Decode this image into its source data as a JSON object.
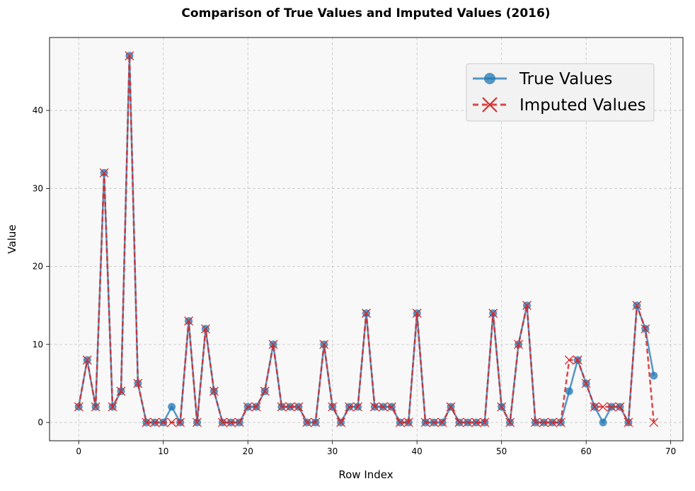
{
  "chart_data": {
    "type": "line",
    "title": "Comparison of True Values and Imputed Values (2016)",
    "xlabel": "Row Index",
    "ylabel": "Value",
    "xlim": [
      -3.45,
      71.45
    ],
    "ylim": [
      -2.35,
      49.35
    ],
    "xticks": [
      0,
      10,
      20,
      30,
      40,
      50,
      60,
      70
    ],
    "yticks": [
      0,
      10,
      20,
      30,
      40
    ],
    "grid": true,
    "legend_position": "top-right",
    "x": [
      0,
      1,
      2,
      3,
      4,
      5,
      6,
      7,
      8,
      9,
      10,
      11,
      12,
      13,
      14,
      15,
      16,
      17,
      18,
      19,
      20,
      21,
      22,
      23,
      24,
      25,
      26,
      27,
      28,
      29,
      30,
      31,
      32,
      33,
      34,
      35,
      36,
      37,
      38,
      39,
      40,
      41,
      42,
      43,
      44,
      45,
      46,
      47,
      48,
      49,
      50,
      51,
      52,
      53,
      54,
      55,
      56,
      57,
      58,
      59,
      60,
      61,
      62,
      63,
      64,
      65,
      66,
      67,
      68
    ],
    "series": [
      {
        "name": "True Values",
        "color": "#1f77b4",
        "marker": "circle",
        "linestyle": "solid",
        "values": [
          2,
          8,
          2,
          32,
          2,
          4,
          47,
          5,
          0,
          0,
          0,
          2,
          0,
          13,
          0,
          12,
          4,
          0,
          0,
          0,
          2,
          2,
          4,
          10,
          2,
          2,
          2,
          0,
          0,
          10,
          2,
          0,
          2,
          2,
          14,
          2,
          2,
          2,
          0,
          0,
          14,
          0,
          0,
          0,
          2,
          0,
          0,
          0,
          0,
          14,
          2,
          0,
          10,
          15,
          0,
          0,
          0,
          0,
          4,
          8,
          5,
          2,
          0,
          2,
          2,
          0,
          15,
          12,
          6
        ]
      },
      {
        "name": "Imputed Values",
        "color": "#d62728",
        "marker": "x",
        "linestyle": "dashed",
        "values": [
          2,
          8,
          2,
          32,
          2,
          4,
          47,
          5,
          0,
          0,
          0,
          0,
          0,
          13,
          0,
          12,
          4,
          0,
          0,
          0,
          2,
          2,
          4,
          10,
          2,
          2,
          2,
          0,
          0,
          10,
          2,
          0,
          2,
          2,
          14,
          2,
          2,
          2,
          0,
          0,
          14,
          0,
          0,
          0,
          2,
          0,
          0,
          0,
          0,
          14,
          2,
          0,
          10,
          15,
          0,
          0,
          0,
          0,
          8,
          8,
          5,
          2,
          2,
          2,
          2,
          0,
          15,
          12,
          0
        ]
      }
    ]
  }
}
